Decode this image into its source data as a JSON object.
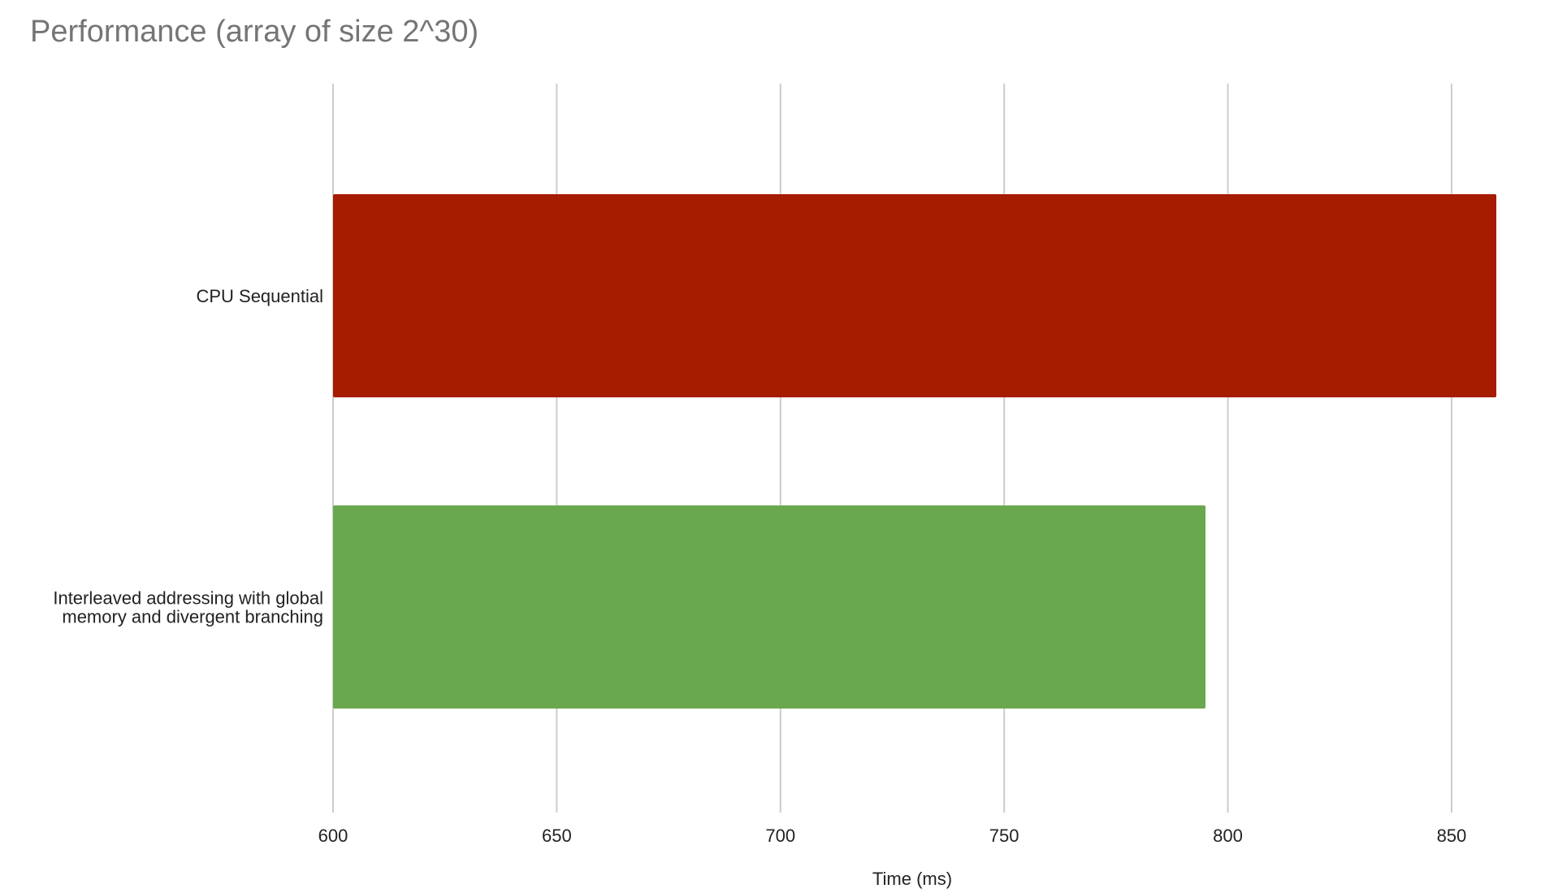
{
  "chart_data": {
    "type": "bar",
    "orientation": "horizontal",
    "title": "Performance (array of size 2^30)",
    "xlabel": "Time (ms)",
    "ylabel": "",
    "categories": [
      "CPU Sequential",
      "Interleaved addressing with global memory and divergent branching"
    ],
    "category_label_lines": [
      [
        "CPU Sequential"
      ],
      [
        "Interleaved addressing with global",
        "memory and divergent branching"
      ]
    ],
    "values": [
      860,
      795
    ],
    "colors": [
      "#a61c00",
      "#6aa84f"
    ],
    "xlim": [
      600,
      860
    ],
    "xticks": [
      600,
      650,
      700,
      750,
      800,
      850
    ],
    "grid": true,
    "legend": "none"
  }
}
